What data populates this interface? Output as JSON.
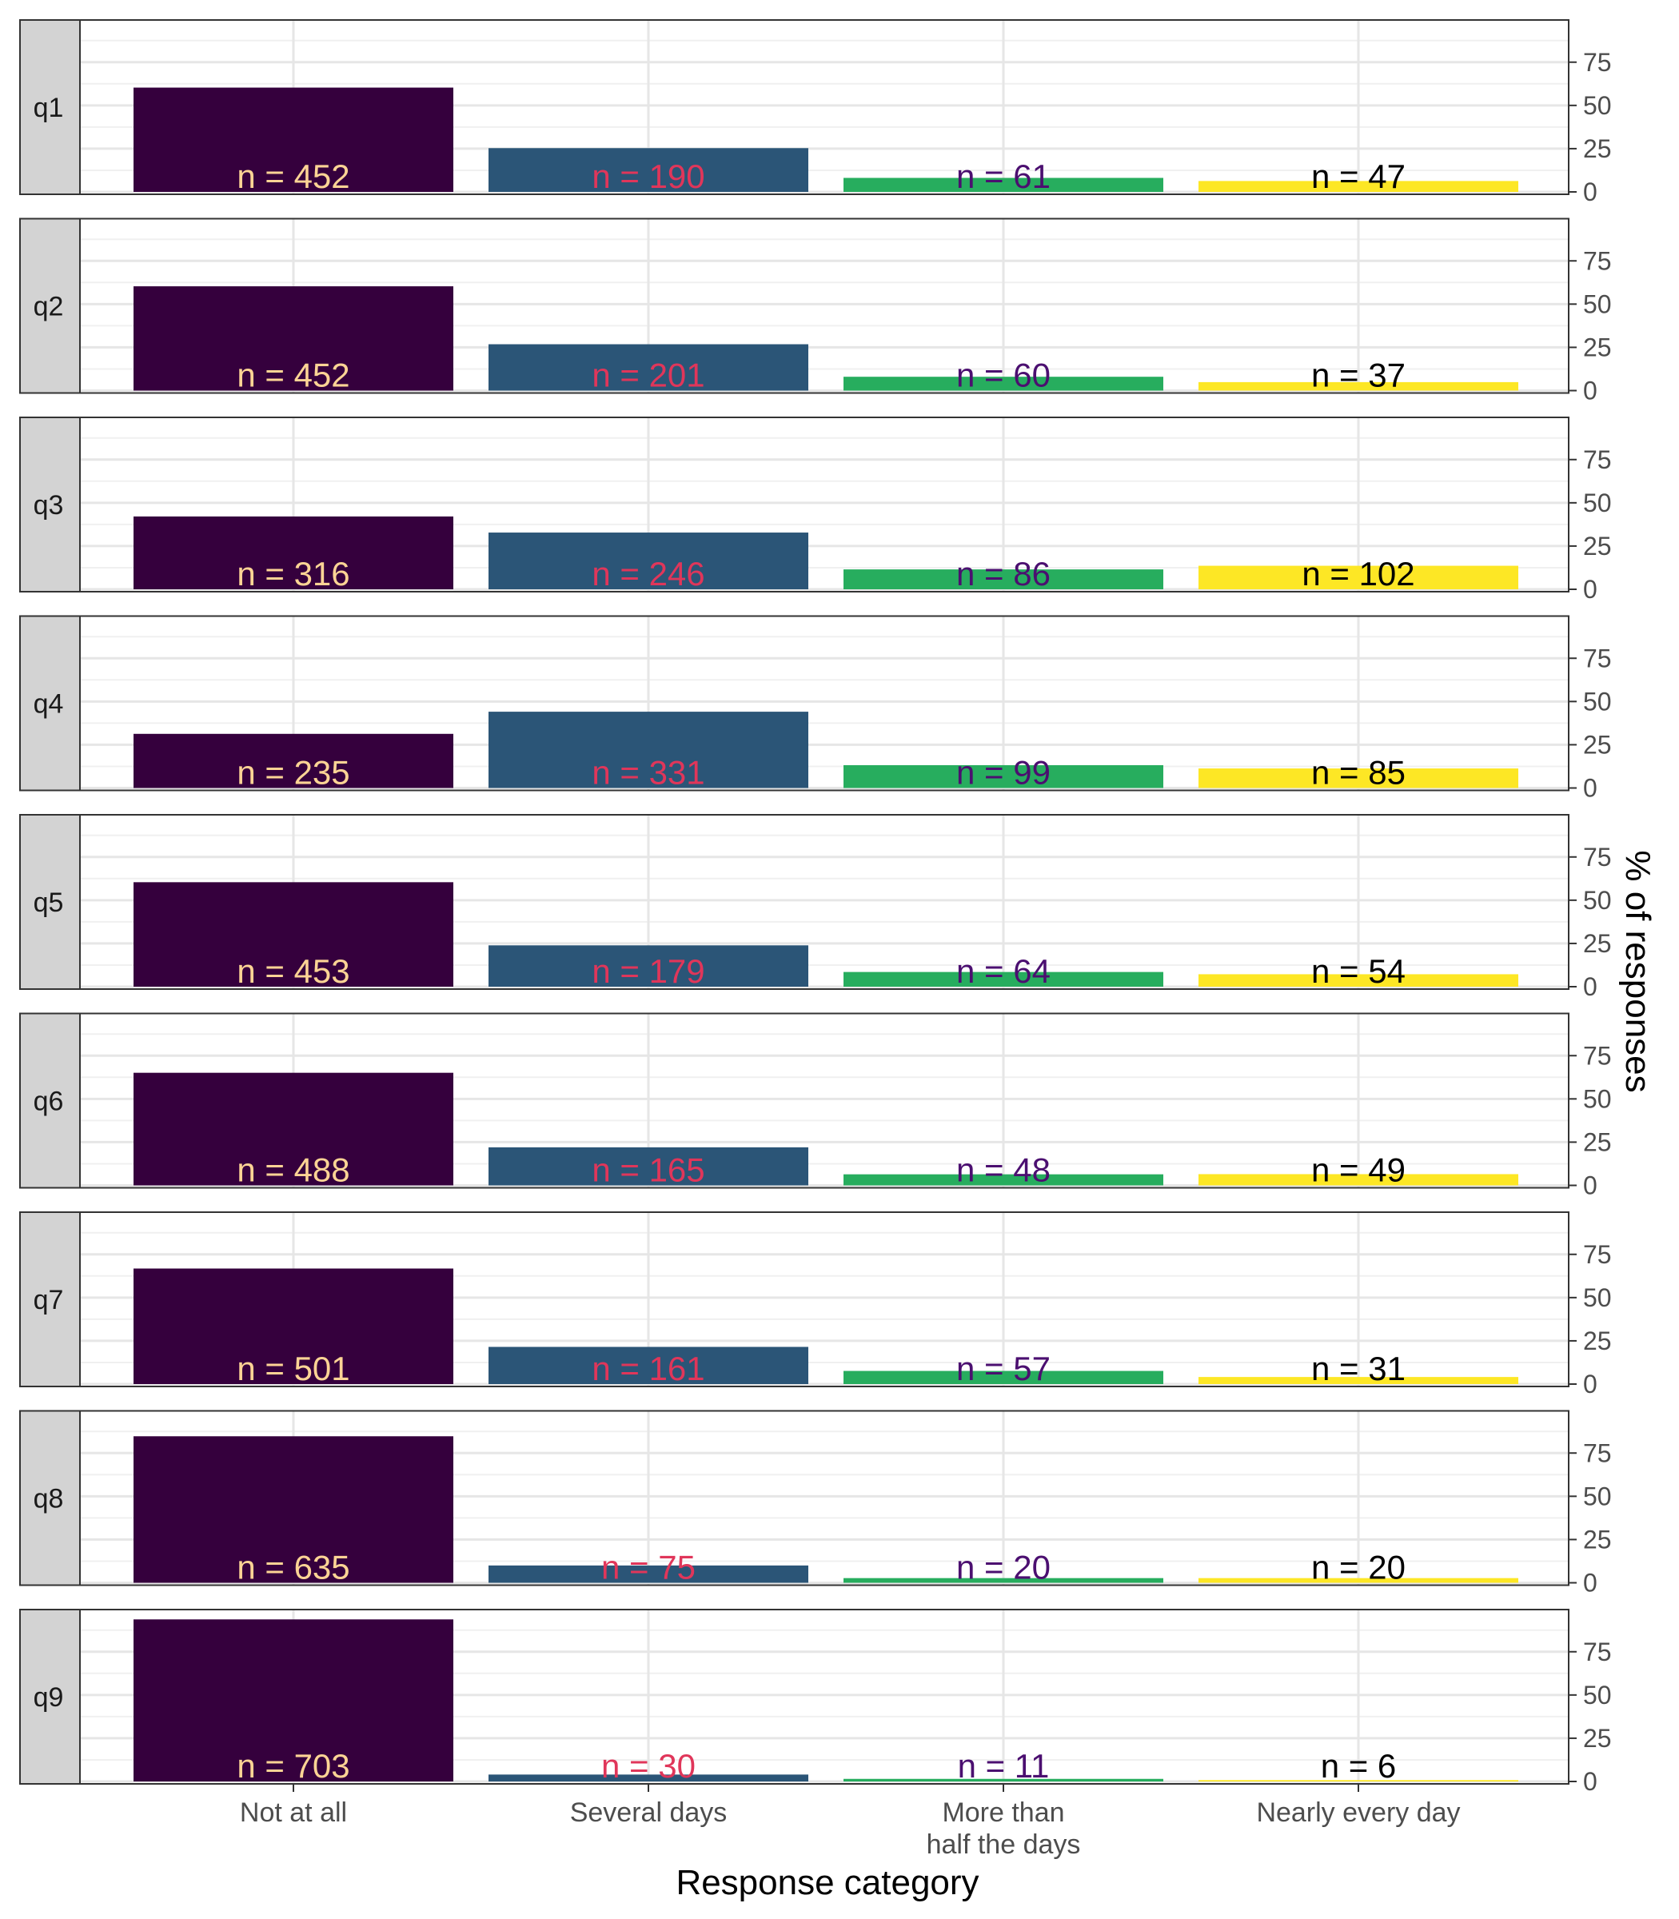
{
  "chart_data": {
    "type": "bar",
    "facet": "q",
    "ylabel": "% of responses",
    "xlabel": "Response category",
    "ylim": [
      0,
      98
    ],
    "yticks": [
      0,
      25,
      50,
      75
    ],
    "y_tick_labels": [
      "0",
      "25",
      "50",
      "75"
    ],
    "grid": true,
    "categories": [
      "Not at all",
      "Several days",
      "More than half the days",
      "Nearly every day"
    ],
    "category_labels": [
      [
        "Not at all"
      ],
      [
        "Several days"
      ],
      [
        "More than",
        "half the days"
      ],
      [
        "Nearly every day"
      ]
    ],
    "colors": [
      "#35003d",
      "#2b5577",
      "#27ad5e",
      "#fde725"
    ],
    "label_colors": [
      "#fdd495",
      "#e0365a",
      "#4b0f70",
      "#000000"
    ],
    "strip_color": "#d3d3d3",
    "panels": [
      {
        "name": "q1",
        "values": [
          60.3,
          25.3,
          8.1,
          6.3
        ],
        "labels": [
          "n = 452",
          "n = 190",
          "n = 61",
          "n = 47"
        ]
      },
      {
        "name": "q2",
        "values": [
          60.3,
          26.8,
          8.0,
          4.9
        ],
        "labels": [
          "n = 452",
          "n = 201",
          "n = 60",
          "n = 37"
        ]
      },
      {
        "name": "q3",
        "values": [
          42.1,
          32.8,
          11.5,
          13.6
        ],
        "labels": [
          "n = 316",
          "n = 246",
          "n = 86",
          "n = 102"
        ]
      },
      {
        "name": "q4",
        "values": [
          31.3,
          44.1,
          13.2,
          11.3
        ],
        "labels": [
          "n = 235",
          "n = 331",
          "n = 99",
          "n = 85"
        ]
      },
      {
        "name": "q5",
        "values": [
          60.4,
          23.9,
          8.5,
          7.2
        ],
        "labels": [
          "n = 453",
          "n = 179",
          "n = 64",
          "n = 54"
        ]
      },
      {
        "name": "q6",
        "values": [
          65.1,
          22.0,
          6.4,
          6.5
        ],
        "labels": [
          "n = 488",
          "n = 165",
          "n = 48",
          "n = 49"
        ]
      },
      {
        "name": "q7",
        "values": [
          66.8,
          21.5,
          7.6,
          4.1
        ],
        "labels": [
          "n = 501",
          "n = 161",
          "n = 57",
          "n = 31"
        ]
      },
      {
        "name": "q8",
        "values": [
          84.7,
          10.0,
          2.7,
          2.7
        ],
        "labels": [
          "n = 635",
          "n = 75",
          "n = 20",
          "n = 20"
        ]
      },
      {
        "name": "q9",
        "values": [
          93.7,
          4.0,
          1.5,
          0.8
        ],
        "labels": [
          "n = 703",
          "n = 30",
          "n = 11",
          "n = 6"
        ]
      }
    ]
  }
}
